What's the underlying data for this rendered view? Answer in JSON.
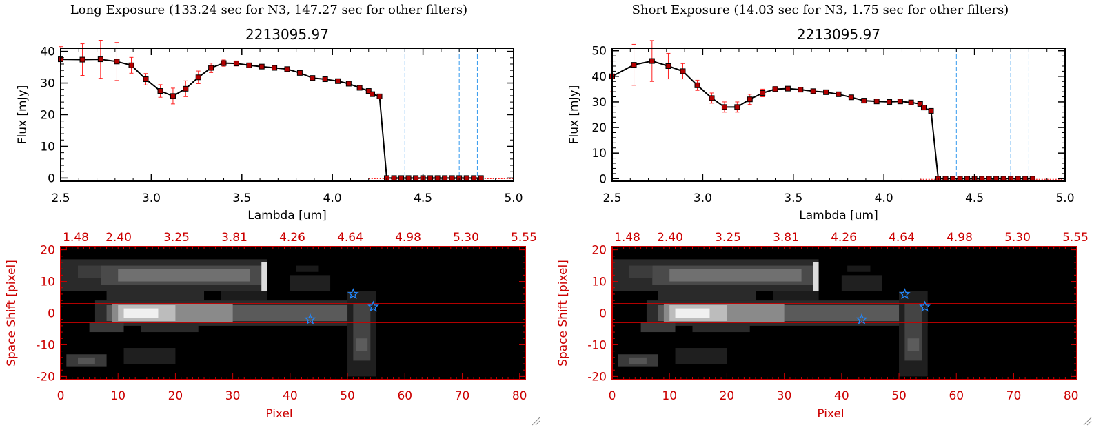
{
  "chart_data": [
    {
      "type": "line",
      "panel_title": "Long Exposure (133.24 sec for N3, 147.27 sec for other filters)",
      "title": "2213095.97",
      "xlabel": "Lambda [um]",
      "ylabel": "Flux [mJy]",
      "xlim": [
        2.5,
        5.0
      ],
      "ylim": [
        -1,
        41
      ],
      "xticks": [
        "2.5",
        "3.0",
        "3.5",
        "4.0",
        "4.5",
        "5.0"
      ],
      "yticks": [
        "0",
        "10",
        "20",
        "30",
        "40"
      ],
      "vlines": [
        4.4,
        4.7,
        4.8
      ],
      "x": [
        2.5,
        2.62,
        2.72,
        2.81,
        2.89,
        2.97,
        3.05,
        3.12,
        3.19,
        3.26,
        3.33,
        3.4,
        3.47,
        3.54,
        3.61,
        3.68,
        3.75,
        3.82,
        3.89,
        3.96,
        4.03,
        4.09,
        4.15,
        4.2,
        4.22,
        4.26,
        4.3,
        4.34,
        4.38,
        4.42,
        4.46,
        4.5,
        4.54,
        4.58,
        4.62,
        4.66,
        4.7,
        4.74,
        4.78,
        4.82
      ],
      "y": [
        37.5,
        37.4,
        37.5,
        36.8,
        35.6,
        31.2,
        27.5,
        25.9,
        28.2,
        31.8,
        34.8,
        36.3,
        36.2,
        35.6,
        35.2,
        34.8,
        34.4,
        33.2,
        31.6,
        31.2,
        30.6,
        29.8,
        28.5,
        27.5,
        26.5,
        25.8,
        0,
        0,
        0,
        0,
        0,
        0,
        0,
        0,
        0,
        0,
        0,
        0,
        0,
        0
      ],
      "yerr": [
        4,
        5,
        6,
        6,
        2.5,
        1.8,
        2,
        2.5,
        2.5,
        2,
        1.5,
        1,
        0.8,
        0.7,
        0.6,
        0.6,
        0.6,
        0.6,
        0.6,
        0.6,
        0.6,
        0.6,
        0.6,
        0.6,
        0.6,
        0.6,
        0,
        0,
        0,
        0,
        0,
        0,
        0,
        0,
        0,
        0,
        0,
        0,
        0,
        0
      ],
      "image": {
        "top_ticks": [
          "1.48",
          "2.40",
          "3.25",
          "3.81",
          "4.26",
          "4.64",
          "4.98",
          "5.30",
          "5.55"
        ],
        "xlabel": "Pixel",
        "ylabel": "Space Shift [pixel]",
        "xlim": [
          0,
          81
        ],
        "ylim": [
          -21,
          21
        ],
        "xticks": [
          "0",
          "10",
          "20",
          "30",
          "40",
          "50",
          "60",
          "70",
          "80"
        ],
        "yticks": [
          "20",
          "10",
          "0",
          "-10",
          "-20"
        ],
        "aperture_lines": [
          3,
          -3
        ],
        "stars": [
          [
            51,
            6
          ],
          [
            54.5,
            2
          ],
          [
            43.5,
            -2
          ]
        ]
      }
    },
    {
      "type": "line",
      "panel_title": "Short Exposure (14.03 sec for N3, 1.75 sec for other filters)",
      "title": "2213095.97",
      "xlabel": "Lambda [um]",
      "ylabel": "Flux [mJy]",
      "xlim": [
        2.5,
        5.0
      ],
      "ylim": [
        -1,
        51
      ],
      "xticks": [
        "2.5",
        "3.0",
        "3.5",
        "4.0",
        "4.5",
        "5.0"
      ],
      "yticks": [
        "0",
        "10",
        "20",
        "30",
        "40",
        "50"
      ],
      "vlines": [
        4.4,
        4.7,
        4.8
      ],
      "x": [
        2.5,
        2.62,
        2.72,
        2.81,
        2.89,
        2.97,
        3.05,
        3.12,
        3.19,
        3.26,
        3.33,
        3.4,
        3.47,
        3.54,
        3.61,
        3.68,
        3.75,
        3.82,
        3.89,
        3.96,
        4.03,
        4.09,
        4.15,
        4.2,
        4.22,
        4.26,
        4.3,
        4.34,
        4.38,
        4.42,
        4.46,
        4.5,
        4.54,
        4.58,
        4.62,
        4.66,
        4.7,
        4.74,
        4.78,
        4.82
      ],
      "y": [
        40,
        44.5,
        46,
        44,
        42,
        36.5,
        31.5,
        28,
        28,
        31,
        33.5,
        35,
        35.2,
        34.8,
        34.2,
        33.8,
        33,
        31.8,
        30.5,
        30.2,
        30,
        30.2,
        29.8,
        29.2,
        27.8,
        26.5,
        0,
        0,
        0,
        0,
        0,
        0,
        0,
        0,
        0,
        0,
        0,
        0,
        0,
        0
      ],
      "yerr": [
        6,
        8,
        8,
        5,
        3,
        2,
        2,
        2,
        2,
        2,
        1.5,
        1,
        0.8,
        0.7,
        0.6,
        0.6,
        0.6,
        0.6,
        0.6,
        0.6,
        0.6,
        0.6,
        0.6,
        0.6,
        0.6,
        0.6,
        0,
        0,
        0,
        0,
        0,
        0,
        0,
        0,
        0,
        0,
        0,
        0,
        0,
        0
      ],
      "image": {
        "top_ticks": [
          "1.48",
          "2.40",
          "3.25",
          "3.81",
          "4.26",
          "4.64",
          "4.98",
          "5.30",
          "5.55"
        ],
        "xlabel": "Pixel",
        "ylabel": "Space Shift [pixel]",
        "xlim": [
          0,
          81
        ],
        "ylim": [
          -21,
          21
        ],
        "xticks": [
          "0",
          "10",
          "20",
          "30",
          "40",
          "50",
          "60",
          "70",
          "80"
        ],
        "yticks": [
          "20",
          "10",
          "0",
          "-10",
          "-20"
        ],
        "aperture_lines": [
          3,
          -3
        ],
        "stars": [
          [
            51,
            6
          ],
          [
            54.5,
            2
          ],
          [
            43.5,
            -2
          ]
        ]
      }
    }
  ],
  "colors": {
    "axis_black": "#000000",
    "image_axis_red": "#cc0000",
    "marker_red": "#b30000",
    "errorbar_red": "#ff2222",
    "vline_blue": "#3399ee",
    "star_blue": "#2288ff",
    "zero_dotted_red": "#ff0000"
  }
}
